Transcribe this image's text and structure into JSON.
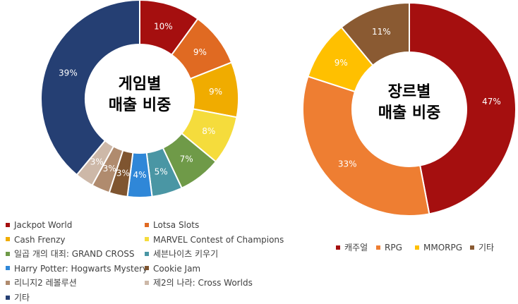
{
  "chart_data": [
    {
      "type": "pie",
      "title": "게임별\n매출 비중",
      "categories": [
        "Jackpot World",
        "Lotsa Slots",
        "Cash Frenzy",
        "MARVEL Contest of Champions",
        "일곱 개의 대죄: GRAND CROSS",
        "세븐나이츠 키우기",
        "Harry Potter: Hogwarts Mystery",
        "Cookie Jam",
        "리니지2 레볼루션",
        "제2의 나라: Cross Worlds",
        "기타"
      ],
      "values": [
        10,
        9,
        9,
        8,
        7,
        5,
        4,
        3,
        3,
        3,
        39
      ],
      "labels": [
        "10%",
        "9%",
        "9%",
        "8%",
        "7%",
        "5%",
        "4%",
        "3%",
        "3%",
        "3%",
        "39%"
      ],
      "colors": [
        "#A50F0F",
        "#E06A22",
        "#F0AC00",
        "#F5DC3C",
        "#6F9A48",
        "#4A96A4",
        "#2F87D8",
        "#7F5530",
        "#B08B6E",
        "#CDB8A8",
        "#253F73"
      ],
      "legend": "bottom",
      "legend_labels": [
        "Jackpot World",
        "Lotsa Slots",
        "Cash Frenzy",
        "MARVEL Contest of Champions",
        "일곱 개의 대죄: GRAND CROSS",
        "세븐나이츠 키우기",
        "Harry Potter: Hogwarts Mystery",
        "Cookie Jam",
        "리니지2 레볼루션",
        "제2의 나라: Cross Worlds",
        "기타"
      ]
    },
    {
      "type": "pie",
      "title": "장르별\n매출 비중",
      "categories": [
        "캐주얼",
        "RPG",
        "MMORPG",
        "기타"
      ],
      "values": [
        47,
        33,
        9,
        11
      ],
      "labels": [
        "47%",
        "33%",
        "9%",
        "11%"
      ],
      "colors": [
        "#A50F0F",
        "#EE7E32",
        "#FFC000",
        "#8A5A32"
      ],
      "legend": "bottom"
    }
  ],
  "center_text_1": [
    "게임별",
    "매출 비중"
  ],
  "center_text_2": [
    "장르별",
    "매출 비중"
  ]
}
